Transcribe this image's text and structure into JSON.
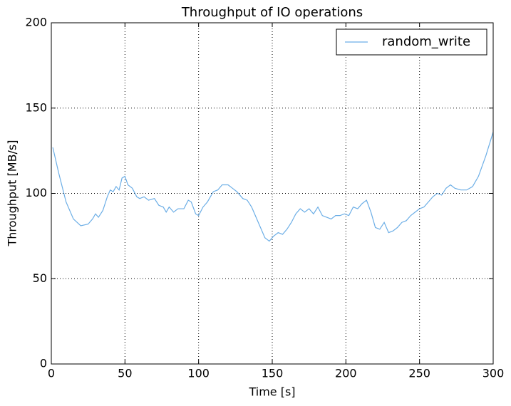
{
  "chart_data": {
    "type": "line",
    "title": "Throughput of IO operations",
    "xlabel": "Time [s]",
    "ylabel": "Throughput [MB/s]",
    "x": [
      1,
      5,
      10,
      15,
      20,
      25,
      28,
      30,
      32,
      35,
      38,
      40,
      42,
      44,
      46,
      48,
      50,
      52,
      55,
      58,
      60,
      63,
      66,
      70,
      73,
      76,
      78,
      80,
      83,
      86,
      90,
      93,
      95,
      98,
      100,
      103,
      106,
      110,
      113,
      116,
      120,
      123,
      126,
      130,
      133,
      136,
      139,
      142,
      145,
      148,
      151,
      154,
      157,
      160,
      163,
      166,
      169,
      172,
      175,
      178,
      181,
      184,
      187,
      190,
      193,
      196,
      199,
      202,
      205,
      208,
      211,
      214,
      217,
      220,
      223,
      226,
      229,
      232,
      235,
      238,
      241,
      244,
      247,
      250,
      253,
      256,
      259,
      262,
      265,
      268,
      271,
      274,
      278,
      282,
      286,
      290,
      295,
      300
    ],
    "series": [
      {
        "name": "random_write",
        "color": "#6caee6",
        "values": [
          127,
          112,
          95,
          85,
          81,
          82,
          85,
          88,
          86,
          90,
          98,
          102,
          101,
          104,
          102,
          109,
          110,
          105,
          103,
          98,
          97,
          98,
          96,
          97,
          93,
          92,
          89,
          92,
          89,
          91,
          91,
          96,
          95,
          88,
          87,
          92,
          95,
          101,
          102,
          105,
          105,
          103,
          101,
          97,
          96,
          92,
          86,
          80,
          74,
          72,
          75,
          77,
          76,
          79,
          83,
          88,
          91,
          89,
          91,
          88,
          92,
          87,
          86,
          85,
          87,
          87,
          88,
          87,
          92,
          91,
          94,
          96,
          89,
          80,
          79,
          83,
          77,
          78,
          80,
          83,
          84,
          87,
          89,
          91,
          92,
          95,
          98,
          100,
          99,
          103,
          105,
          103,
          102,
          102,
          104,
          110,
          122,
          136
        ]
      }
    ],
    "xlim": [
      0,
      300
    ],
    "xticks": [
      0,
      50,
      100,
      150,
      200,
      250,
      300
    ],
    "ylim": [
      0,
      200
    ],
    "yticks": [
      0,
      50,
      100,
      150,
      200
    ],
    "grid": true,
    "legend": "upper right"
  }
}
